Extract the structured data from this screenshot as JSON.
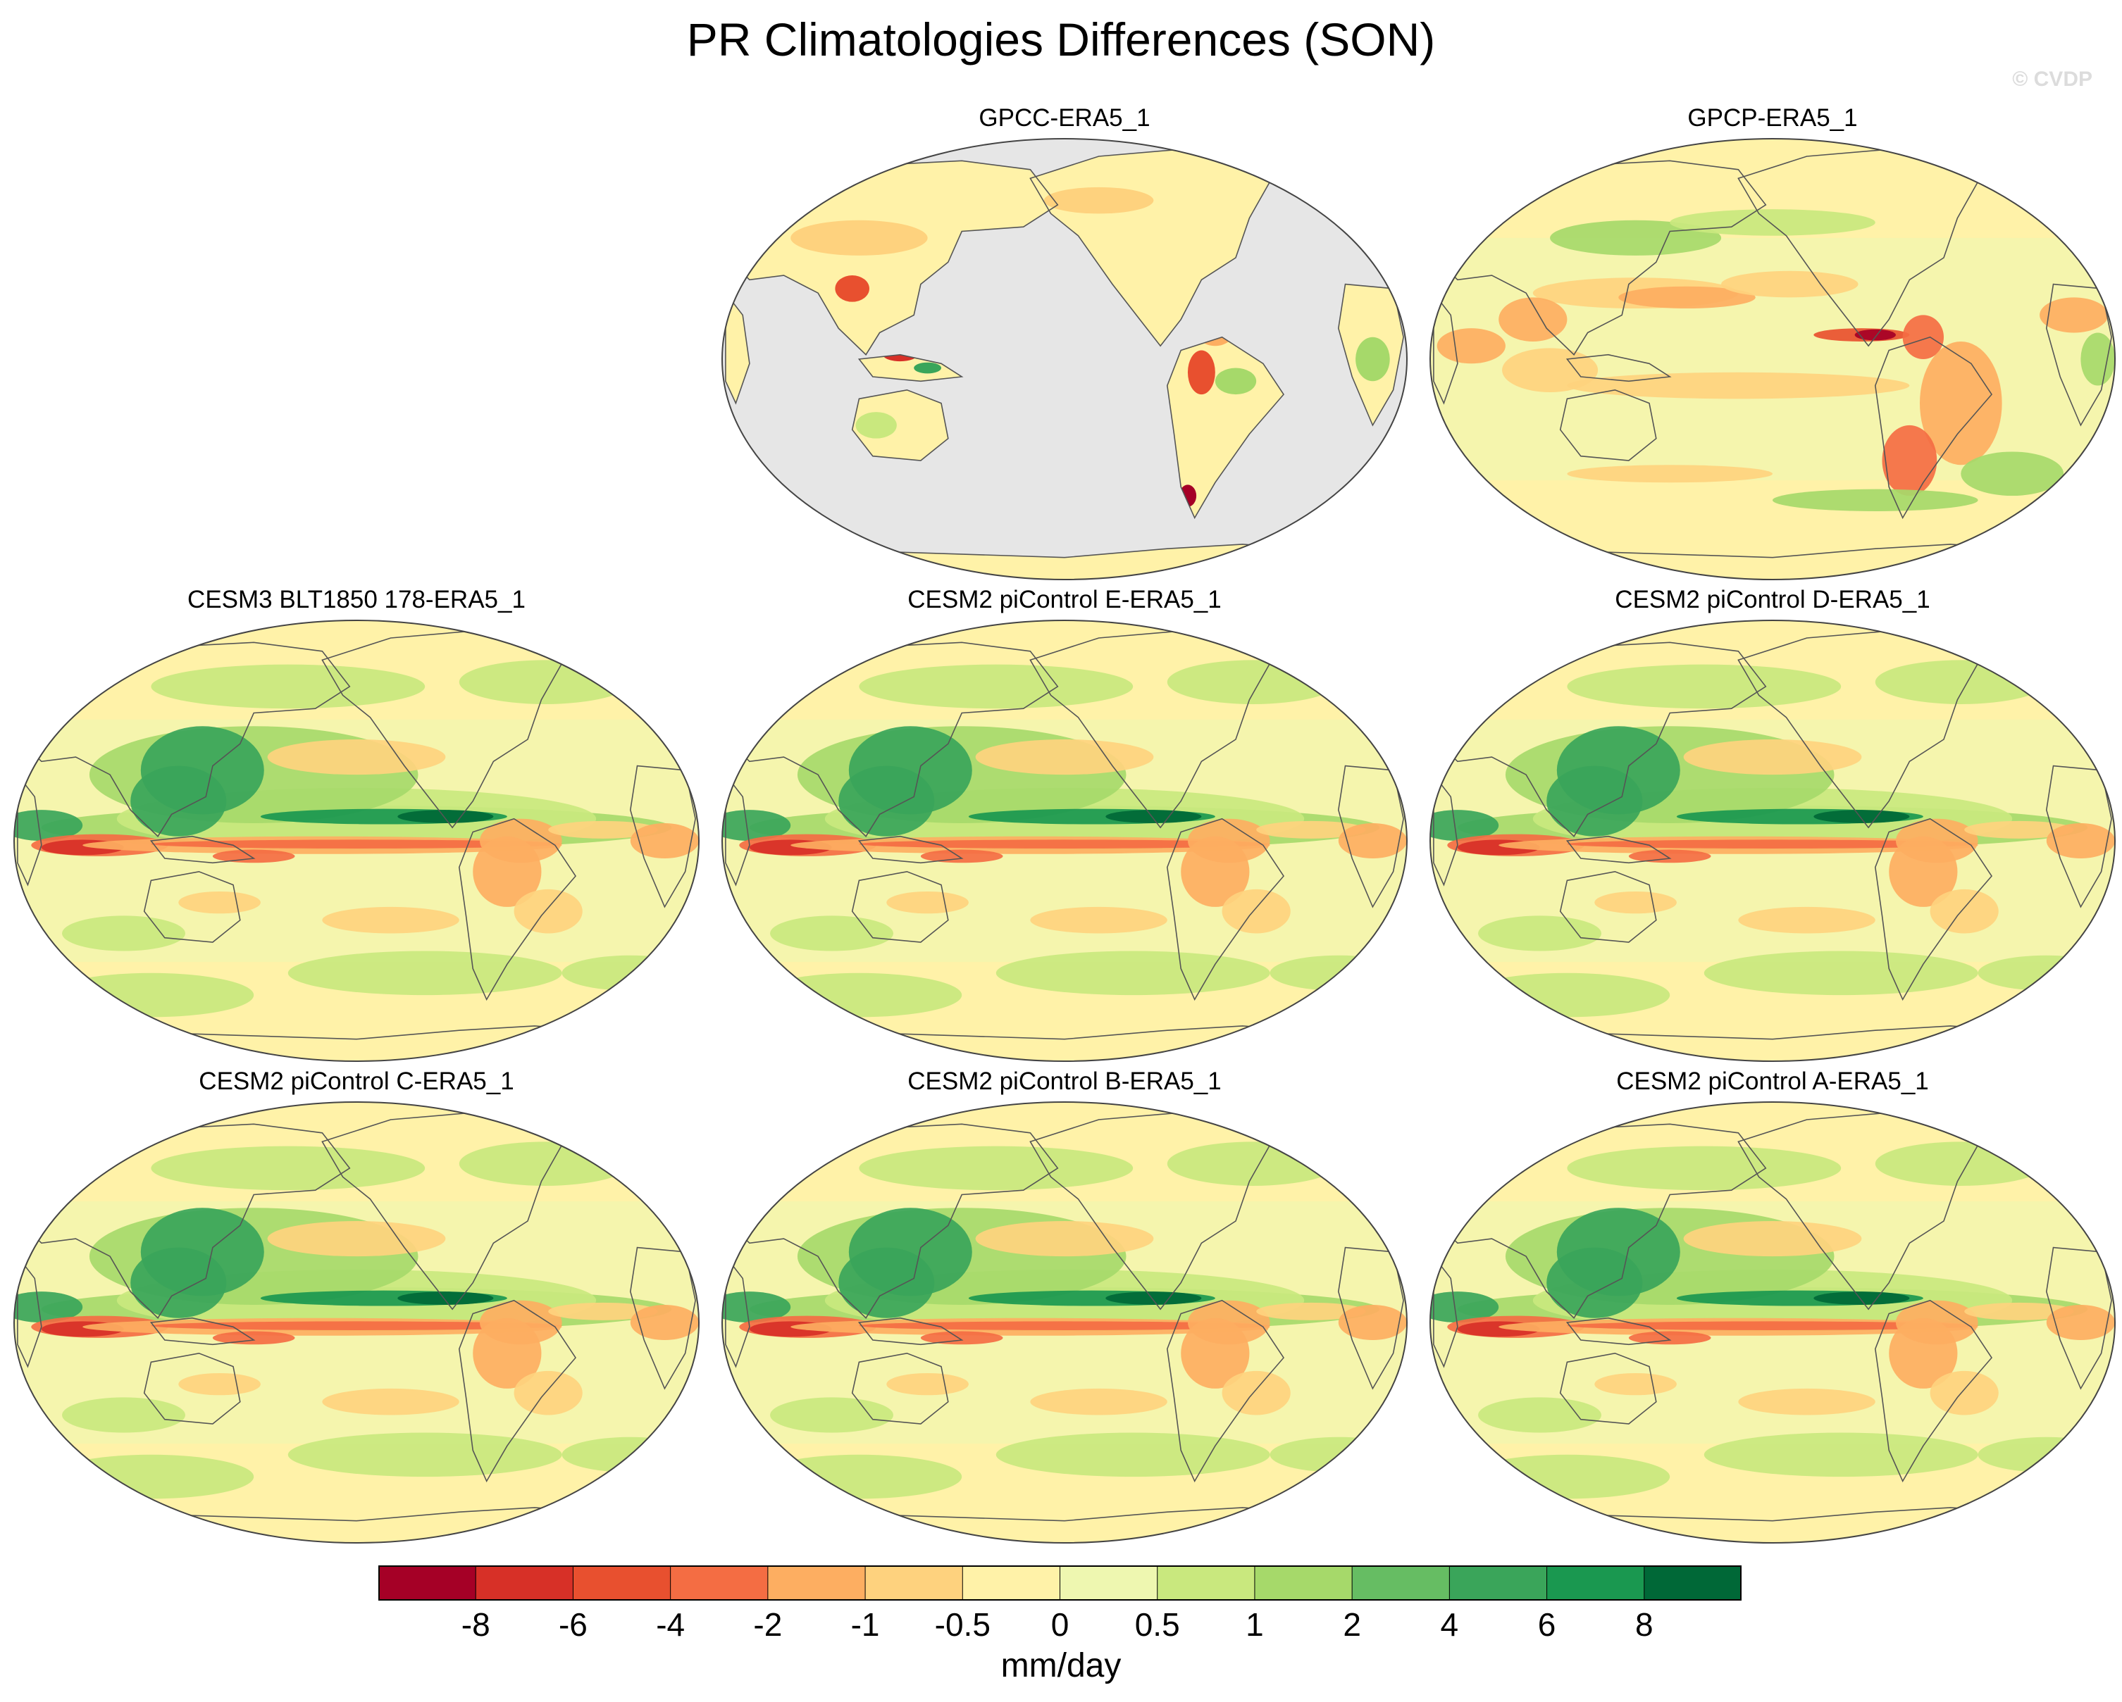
{
  "title": "PR Climatologies Differences (SON)",
  "watermark": "© CVDP",
  "colors": {
    "ocean_masked": "#e6e6e6",
    "coast": "#555555"
  },
  "panels": [
    {
      "label": "GPCC-ERA5_1",
      "style": "land-only"
    },
    {
      "label": "GPCP-ERA5_1",
      "style": "obs"
    },
    {
      "label": "CESM3 BLT1850 178-ERA5_1",
      "style": "model"
    },
    {
      "label": "CESM2 piControl E-ERA5_1",
      "style": "model"
    },
    {
      "label": "CESM2 piControl D-ERA5_1",
      "style": "model"
    },
    {
      "label": "CESM2 piControl C-ERA5_1",
      "style": "model"
    },
    {
      "label": "CESM2 piControl B-ERA5_1",
      "style": "model"
    },
    {
      "label": "CESM2 piControl A-ERA5_1",
      "style": "model"
    }
  ],
  "colorbar": {
    "units": "mm/day",
    "levels": [
      "-8",
      "-6",
      "-4",
      "-2",
      "-1",
      "-0.5",
      "0",
      "0.5",
      "1",
      "2",
      "4",
      "6",
      "8"
    ],
    "colors": [
      "#a50026",
      "#d73027",
      "#e8502f",
      "#f46d43",
      "#fdae61",
      "#fed27e",
      "#fff2a8",
      "#eef7b0",
      "#c9e87e",
      "#a6d96a",
      "#66bd63",
      "#3aa55a",
      "#1a9850",
      "#006837"
    ]
  }
}
